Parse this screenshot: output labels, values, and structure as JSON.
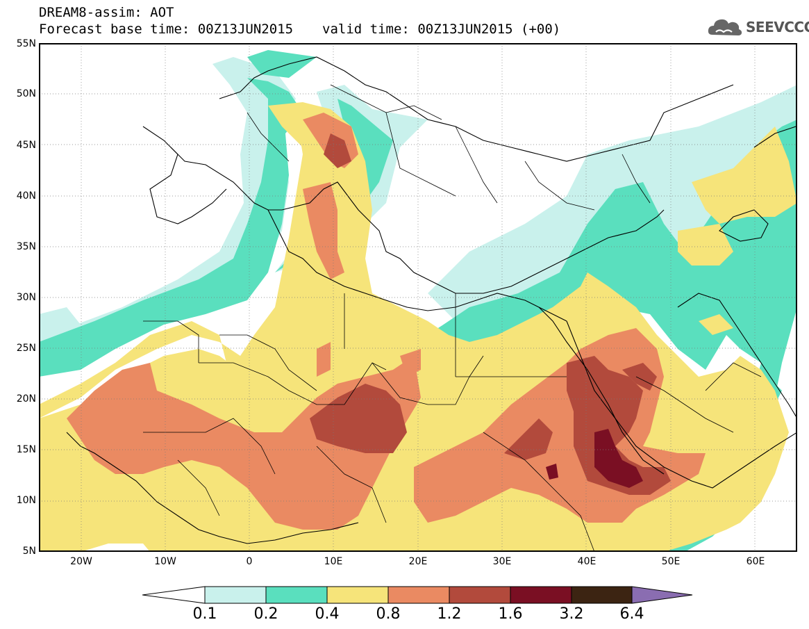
{
  "header": {
    "title": "DREAM8-assim: AOT",
    "base_time": "Forecast base time: 00Z13JUN2015",
    "valid_time": "valid time: 00Z13JUN2015 (+00)"
  },
  "logo": {
    "text": "SEEVCCC",
    "icon": "cloud-icon",
    "color": "#555555"
  },
  "map": {
    "variable": "Aerosol Optical Thickness",
    "lon_range": [
      -25,
      65
    ],
    "lat_range": [
      5,
      55
    ],
    "lat_labels": [
      "55N",
      "50N",
      "45N",
      "40N",
      "35N",
      "30N",
      "25N",
      "20N",
      "15N",
      "10N",
      "5N"
    ],
    "lon_labels": [
      "20W",
      "10W",
      "0",
      "10E",
      "20E",
      "30E",
      "40E",
      "50E",
      "60E"
    ],
    "gridlines": "dotted",
    "coastlines": true,
    "borders": true
  },
  "legend": {
    "levels": [
      "0.1",
      "0.2",
      "0.4",
      "0.8",
      "1.2",
      "1.6",
      "3.2",
      "6.4"
    ],
    "colors": [
      "#c9f1ec",
      "#5adfbe",
      "#f6e47a",
      "#ea8a62",
      "#b24a3c",
      "#7a0f23",
      "#3c2412"
    ],
    "below_color": "#ffffff",
    "above_color": "#8a6db1"
  }
}
